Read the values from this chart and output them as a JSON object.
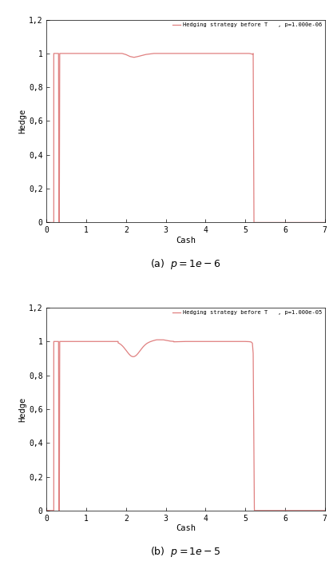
{
  "title1": "Hedging strategy before T   , p=1.000e-06",
  "title2": "Hedging strategy before T   , p=1.000e-05",
  "xlabel": "Cash",
  "ylabel": "Hedge",
  "caption1": "(a)  $p = 1e-6$",
  "caption2": "(b)  $p = 1e-5$",
  "xlim": [
    0,
    7
  ],
  "ylim": [
    0,
    1.2
  ],
  "xticks": [
    0,
    1,
    2,
    3,
    4,
    5,
    6,
    7
  ],
  "ytick_vals": [
    0,
    0.2,
    0.4,
    0.6,
    0.8,
    1.0,
    1.2
  ],
  "ytick_labels": [
    "0",
    "0,2",
    "0,4",
    "0,6",
    "0,8",
    "1",
    "1,2"
  ],
  "line_color": "#e08080",
  "background_color": "#ffffff",
  "line_width": 0.9
}
